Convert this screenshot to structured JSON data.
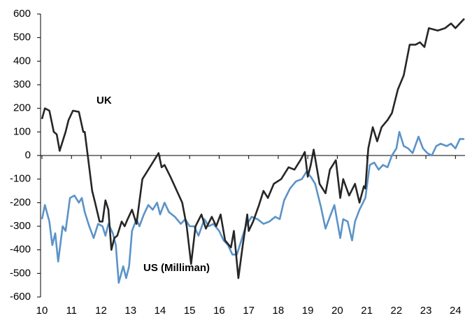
{
  "chart_data": {
    "type": "line",
    "xlim": [
      10,
      24.3
    ],
    "xticks": [
      10,
      11,
      12,
      13,
      14,
      15,
      16,
      17,
      18,
      19,
      20,
      21,
      22,
      23,
      24
    ],
    "ylim": [
      -600,
      600
    ],
    "yticks": [
      -600,
      -500,
      -400,
      -300,
      -200,
      -100,
      0,
      100,
      200,
      300,
      400,
      500,
      600
    ],
    "grid": false,
    "series": [
      {
        "name": "UK",
        "color": "#262626",
        "x": [
          10.0,
          10.1,
          10.25,
          10.4,
          10.5,
          10.6,
          10.8,
          10.9,
          11.05,
          11.25,
          11.4,
          11.45,
          11.55,
          11.7,
          11.8,
          11.95,
          12.05,
          12.15,
          12.25,
          12.35,
          12.45,
          12.55,
          12.7,
          12.8,
          12.9,
          13.05,
          13.2,
          13.4,
          13.6,
          13.75,
          13.95,
          14.05,
          14.15,
          14.35,
          14.75,
          14.9,
          15.05,
          15.2,
          15.4,
          15.55,
          15.75,
          15.9,
          16.05,
          16.2,
          16.4,
          16.5,
          16.65,
          16.8,
          16.95,
          17.0,
          17.15,
          17.35,
          17.5,
          17.65,
          17.85,
          18.1,
          18.35,
          18.55,
          18.75,
          18.9,
          19.0,
          19.1,
          19.2,
          19.4,
          19.6,
          19.75,
          19.95,
          20.1,
          20.2,
          20.4,
          20.6,
          20.75,
          20.9,
          20.95,
          21.05,
          21.2,
          21.35,
          21.5,
          21.7,
          21.85,
          22.05,
          22.25,
          22.45,
          22.65,
          22.8,
          22.95,
          23.1,
          23.4,
          23.65,
          23.85,
          24.0,
          24.3
        ],
        "values": [
          155,
          200,
          190,
          100,
          90,
          20,
          100,
          150,
          190,
          185,
          100,
          100,
          0,
          -150,
          -200,
          -280,
          -280,
          -190,
          -230,
          -400,
          -350,
          -340,
          -280,
          -300,
          -270,
          -230,
          -290,
          -100,
          -60,
          -30,
          10,
          -50,
          -40,
          -90,
          -200,
          -300,
          -460,
          -300,
          -250,
          -310,
          -260,
          -300,
          -250,
          -360,
          -390,
          -320,
          -520,
          -380,
          -250,
          -320,
          -280,
          -210,
          -150,
          -180,
          -120,
          -100,
          -50,
          -60,
          -20,
          15,
          -90,
          -40,
          25,
          -120,
          -160,
          -60,
          -20,
          -180,
          -100,
          -170,
          -120,
          -200,
          -130,
          -140,
          30,
          120,
          60,
          120,
          150,
          180,
          280,
          340,
          470,
          470,
          480,
          460,
          540,
          530,
          540,
          560,
          540,
          580
        ]
      },
      {
        "name": "US (Milliman)",
        "color": "#5b93c8",
        "x": [
          10.0,
          10.1,
          10.25,
          10.35,
          10.45,
          10.55,
          10.7,
          10.8,
          10.95,
          11.1,
          11.25,
          11.35,
          11.45,
          11.6,
          11.75,
          11.9,
          12.05,
          12.15,
          12.25,
          12.4,
          12.5,
          12.6,
          12.75,
          12.85,
          12.95,
          13.05,
          13.2,
          13.3,
          13.45,
          13.6,
          13.75,
          13.9,
          14.0,
          14.15,
          14.3,
          14.5,
          14.7,
          14.85,
          15.0,
          15.15,
          15.3,
          15.5,
          15.65,
          15.8,
          16.0,
          16.15,
          16.3,
          16.45,
          16.6,
          16.75,
          16.9,
          17.1,
          17.3,
          17.5,
          17.7,
          17.9,
          18.05,
          18.2,
          18.4,
          18.6,
          18.8,
          18.95,
          19.1,
          19.25,
          19.45,
          19.6,
          19.75,
          19.9,
          20.0,
          20.1,
          20.2,
          20.35,
          20.5,
          20.6,
          20.75,
          20.95,
          21.1,
          21.25,
          21.4,
          21.55,
          21.7,
          21.85,
          22.0,
          22.1,
          22.25,
          22.4,
          22.55,
          22.75,
          22.9,
          23.05,
          23.2,
          23.35,
          23.5,
          23.7,
          23.85,
          24.0,
          24.15,
          24.3
        ],
        "values": [
          -270,
          -210,
          -280,
          -380,
          -330,
          -450,
          -300,
          -320,
          -180,
          -170,
          -200,
          -180,
          -240,
          -300,
          -350,
          -290,
          -300,
          -340,
          -290,
          -330,
          -380,
          -540,
          -470,
          -520,
          -470,
          -320,
          -270,
          -300,
          -250,
          -210,
          -230,
          -200,
          -250,
          -200,
          -240,
          -260,
          -290,
          -270,
          -300,
          -300,
          -340,
          -270,
          -300,
          -290,
          -320,
          -360,
          -380,
          -420,
          -420,
          -360,
          -300,
          -260,
          -270,
          -290,
          -280,
          -260,
          -270,
          -190,
          -140,
          -110,
          -100,
          -70,
          -90,
          -120,
          -220,
          -310,
          -260,
          -210,
          -280,
          -350,
          -270,
          -280,
          -360,
          -280,
          -230,
          -180,
          -40,
          -30,
          -60,
          -40,
          -50,
          0,
          30,
          100,
          40,
          30,
          10,
          80,
          30,
          10,
          0,
          40,
          50,
          40,
          50,
          30,
          70,
          70
        ]
      }
    ]
  }
}
